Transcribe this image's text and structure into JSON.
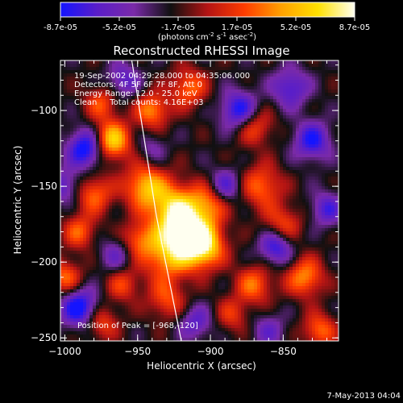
{
  "colorbar": {
    "ticks": [
      "-8.7e-05",
      "-5.2e-05",
      "-1.7e-05",
      "1.7e-05",
      "5.2e-05",
      "8.7e-05"
    ],
    "unit_main": "(photons cm",
    "unit_sup1": "-2",
    "unit_mid": " s",
    "unit_sup2": "-1",
    "unit_mid2": " asec",
    "unit_sup3": "-2",
    "unit_end": ")"
  },
  "chart_data": {
    "type": "heatmap",
    "title": "Reconstructed RHESSI Image",
    "xlabel": "Heliocentric X (arcsec)",
    "ylabel": "Heliocentric Y (arcsec)",
    "xlim": [
      -1003,
      -812
    ],
    "ylim": [
      -252,
      -67
    ],
    "x_ticks": [
      -1000,
      -950,
      -900,
      -850
    ],
    "y_ticks": [
      -100,
      -150,
      -200,
      -250
    ],
    "x_tick_labels": [
      "−1000",
      "−950",
      "−900",
      "−850"
    ],
    "y_tick_labels": [
      "−100",
      "−150",
      "−200",
      "−250"
    ],
    "value_range": [
      -8.7e-05,
      8.7e-05
    ],
    "colormap": [
      "#1414ff",
      "#5a1ec8",
      "#7a2aa8",
      "#101010",
      "#b41414",
      "#ff3c00",
      "#ffa000",
      "#ffe000",
      "#fffff0"
    ],
    "annotations": [
      "19-Sep-2002 04:29:28.000 to 04:35:06.000",
      "Detectors: 4F 5F 6F 7F 8F, Att 0",
      "Energy Range: 12.0 - 25.0 keV",
      "Clean     Total counts: 4.16E+03"
    ],
    "peak_label": "Position of Peak = [-968,-120]",
    "peak": [
      -968,
      -120
    ],
    "limb": [
      [
        -954,
        -67
      ],
      [
        -937,
        -170
      ],
      [
        -920,
        -252
      ]
    ],
    "limb_color": "#ffffff",
    "blobs": [
      {
        "x": -968,
        "y": -120,
        "v": 1.0,
        "s": 9
      },
      {
        "x": -945,
        "y": -150,
        "v": 0.8,
        "s": 10
      },
      {
        "x": -925,
        "y": -165,
        "v": 0.9,
        "s": 12
      },
      {
        "x": -915,
        "y": -180,
        "v": 0.95,
        "s": 12
      },
      {
        "x": -905,
        "y": -190,
        "v": 0.9,
        "s": 10
      },
      {
        "x": -930,
        "y": -195,
        "v": 0.75,
        "s": 12
      },
      {
        "x": -900,
        "y": -160,
        "v": 0.55,
        "s": 9
      },
      {
        "x": -950,
        "y": -185,
        "v": 0.5,
        "s": 8
      },
      {
        "x": -980,
        "y": -155,
        "v": 0.6,
        "s": 9
      },
      {
        "x": -990,
        "y": -180,
        "v": 0.55,
        "s": 8
      },
      {
        "x": -975,
        "y": -95,
        "v": 0.5,
        "s": 8
      },
      {
        "x": -940,
        "y": -100,
        "v": 0.7,
        "s": 8
      },
      {
        "x": -915,
        "y": -85,
        "v": 0.6,
        "s": 9
      },
      {
        "x": -870,
        "y": -110,
        "v": 0.55,
        "s": 9
      },
      {
        "x": -865,
        "y": -150,
        "v": 0.6,
        "s": 10
      },
      {
        "x": -850,
        "y": -175,
        "v": 0.5,
        "s": 9
      },
      {
        "x": -835,
        "y": -210,
        "v": 0.7,
        "s": 9
      },
      {
        "x": -870,
        "y": -215,
        "v": 0.6,
        "s": 9
      },
      {
        "x": -825,
        "y": -245,
        "v": 0.6,
        "s": 8
      },
      {
        "x": -1000,
        "y": -210,
        "v": 0.6,
        "s": 8
      },
      {
        "x": -975,
        "y": -240,
        "v": 0.5,
        "s": 8
      },
      {
        "x": -960,
        "y": -215,
        "v": 0.45,
        "s": 8
      },
      {
        "x": -885,
        "y": -235,
        "v": 0.4,
        "s": 8
      },
      {
        "x": -930,
        "y": -225,
        "v": 0.5,
        "s": 9
      },
      {
        "x": -985,
        "y": -125,
        "v": -0.9,
        "s": 9
      },
      {
        "x": -880,
        "y": -100,
        "v": -0.8,
        "s": 9
      },
      {
        "x": -990,
        "y": -230,
        "v": -0.85,
        "s": 9
      },
      {
        "x": -855,
        "y": -190,
        "v": -0.7,
        "s": 8
      },
      {
        "x": -830,
        "y": -120,
        "v": -0.7,
        "s": 9
      },
      {
        "x": -890,
        "y": -150,
        "v": -0.6,
        "s": 8
      },
      {
        "x": -960,
        "y": -80,
        "v": -0.5,
        "s": 8
      },
      {
        "x": -845,
        "y": -85,
        "v": -0.6,
        "s": 9
      },
      {
        "x": -965,
        "y": -195,
        "v": -0.4,
        "s": 8
      },
      {
        "x": -910,
        "y": -240,
        "v": -0.5,
        "s": 8
      },
      {
        "x": -860,
        "y": -245,
        "v": -0.4,
        "s": 8
      },
      {
        "x": -1000,
        "y": -150,
        "v": -0.5,
        "s": 8
      },
      {
        "x": -820,
        "y": -165,
        "v": -0.55,
        "s": 8
      },
      {
        "x": -940,
        "y": -125,
        "v": -0.3,
        "s": 7
      }
    ]
  },
  "footer": {
    "date": "7-May-2013 04:04"
  }
}
